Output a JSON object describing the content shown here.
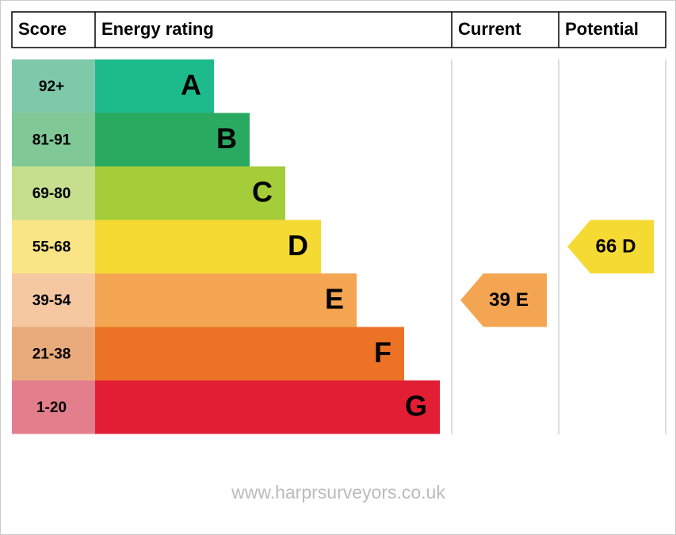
{
  "header": {
    "score": "Score",
    "rating": "Energy rating",
    "current": "Current",
    "potential": "Potential"
  },
  "bands": [
    {
      "score": "92+",
      "letter": "A",
      "color": "#1dbb8c",
      "light": "#7fc9ab"
    },
    {
      "score": "81-91",
      "letter": "B",
      "color": "#2aa960",
      "light": "#80c896"
    },
    {
      "score": "69-80",
      "letter": "C",
      "color": "#a5cc39",
      "light": "#c5df8f"
    },
    {
      "score": "55-68",
      "letter": "D",
      "color": "#f6da34",
      "light": "#f9e585"
    },
    {
      "score": "39-54",
      "letter": "E",
      "color": "#f4a552",
      "light": "#f5c8a1"
    },
    {
      "score": "21-38",
      "letter": "F",
      "color": "#ec7325",
      "light": "#eaab7c"
    },
    {
      "score": "1-20",
      "letter": "G",
      "color": "#e21e35",
      "light": "#e37e8d"
    }
  ],
  "current": {
    "score": 39,
    "band": "E"
  },
  "potential": {
    "score": 66,
    "band": "D"
  },
  "footer": "www.harprsurveyors.co.uk"
}
